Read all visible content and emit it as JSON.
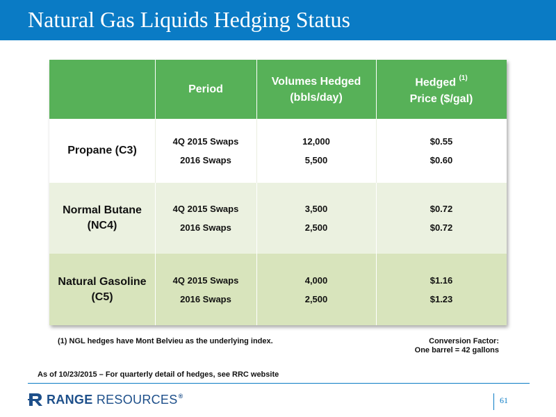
{
  "title": "Natural Gas Liquids Hedging Status",
  "table": {
    "headers": {
      "period": "Period",
      "volumes_line1": "Volumes Hedged",
      "volumes_line2": "(bbls/day)",
      "price_line1": "Hedged",
      "price_sup": "(1)",
      "price_line2": "Price ($/gal)"
    },
    "rows": [
      {
        "product_line1": "Propane (C3)",
        "product_line2": "",
        "periods": [
          "4Q 2015 Swaps",
          "2016 Swaps"
        ],
        "volumes": [
          "12,000",
          "5,500"
        ],
        "prices": [
          "$0.55",
          "$0.60"
        ]
      },
      {
        "product_line1": "Normal Butane",
        "product_line2": "(NC4)",
        "periods": [
          "4Q 2015 Swaps",
          "2016 Swaps"
        ],
        "volumes": [
          "3,500",
          "2,500"
        ],
        "prices": [
          "$0.72",
          "$0.72"
        ]
      },
      {
        "product_line1": "Natural Gasoline",
        "product_line2": "(C5)",
        "periods": [
          "4Q 2015 Swaps",
          "2016 Swaps"
        ],
        "volumes": [
          "4,000",
          "2,500"
        ],
        "prices": [
          "$1.16",
          "$1.23"
        ]
      }
    ]
  },
  "footnote": "(1) NGL hedges have Mont Belvieu as the underlying index.",
  "conversion": {
    "line1": "Conversion Factor:",
    "line2": "One barrel = 42 gallons"
  },
  "as_of": "As of 10/23/2015 – For quarterly detail of hedges, see RRC website",
  "footer": {
    "logo_bold": "RANGE",
    "logo_light": "RESOURCES",
    "logo_reg": "®",
    "page_number": "61"
  },
  "colors": {
    "title_bar": "#0a7bc5",
    "header_green": "#57b158",
    "row_light": "#ebf1e0",
    "row_medium": "#d8e4bc",
    "logo_blue": "#1d4f8a"
  }
}
